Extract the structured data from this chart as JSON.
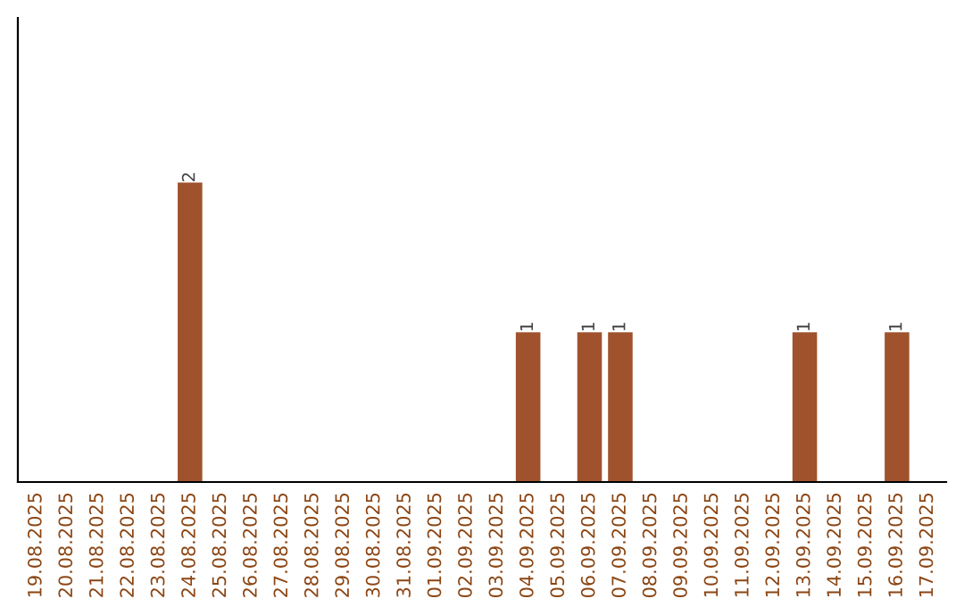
{
  "chart_data": {
    "type": "bar",
    "categories": [
      "19.08.2025",
      "20.08.2025",
      "21.08.2025",
      "22.08.2025",
      "23.08.2025",
      "24.08.2025",
      "25.08.2025",
      "26.08.2025",
      "27.08.2025",
      "28.08.2025",
      "29.08.2025",
      "30.08.2025",
      "31.08.2025",
      "01.09.2025",
      "02.09.2025",
      "03.09.2025",
      "04.09.2025",
      "05.09.2025",
      "06.09.2025",
      "07.09.2025",
      "08.09.2025",
      "09.09.2025",
      "10.09.2025",
      "11.09.2025",
      "12.09.2025",
      "13.09.2025",
      "14.09.2025",
      "15.09.2025",
      "16.09.2025",
      "17.09.2025"
    ],
    "values": [
      0,
      0,
      0,
      0,
      0,
      2,
      0,
      0,
      0,
      0,
      0,
      0,
      0,
      0,
      0,
      0,
      1,
      0,
      1,
      1,
      0,
      0,
      0,
      0,
      0,
      1,
      0,
      0,
      1,
      0
    ],
    "value_labels": [
      null,
      null,
      null,
      null,
      null,
      "2",
      null,
      null,
      null,
      null,
      null,
      null,
      null,
      null,
      null,
      null,
      "1",
      null,
      "1",
      "1",
      null,
      null,
      null,
      null,
      null,
      "1",
      null,
      null,
      "1",
      null
    ],
    "color": "#a0522d",
    "ylim": [
      0,
      3.1
    ],
    "tick_labels": "x",
    "grid": false
  }
}
